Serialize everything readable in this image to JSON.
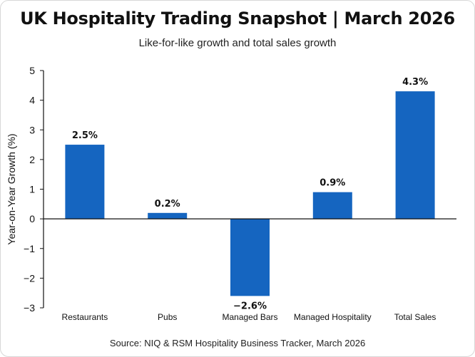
{
  "chart_data": {
    "type": "bar",
    "title": "UK Hospitality Trading Snapshot | March 2026",
    "subtitle": "Like-for-like growth and total sales growth",
    "ylabel": "Year-on-Year Growth (%)",
    "xlabel": "",
    "categories": [
      "Restaurants",
      "Pubs",
      "Managed Bars",
      "Managed Hospitality",
      "Total Sales"
    ],
    "values": [
      2.5,
      0.2,
      -2.6,
      0.9,
      4.3
    ],
    "value_labels": [
      "2.5%",
      "0.2%",
      "−2.6%",
      "0.9%",
      "4.3%"
    ],
    "ylim": [
      -3,
      5
    ],
    "yticks": [
      5,
      4,
      3,
      2,
      1,
      0,
      -1,
      -2,
      -3
    ],
    "ytick_labels": [
      "5",
      "4",
      "3",
      "2",
      "1",
      "0",
      "−1",
      "−2",
      "−3"
    ],
    "grid": false,
    "legend": "none",
    "bar_color": "#1565c0",
    "source": "Source: NIQ & RSM Hospitality Business Tracker, March 2026"
  }
}
